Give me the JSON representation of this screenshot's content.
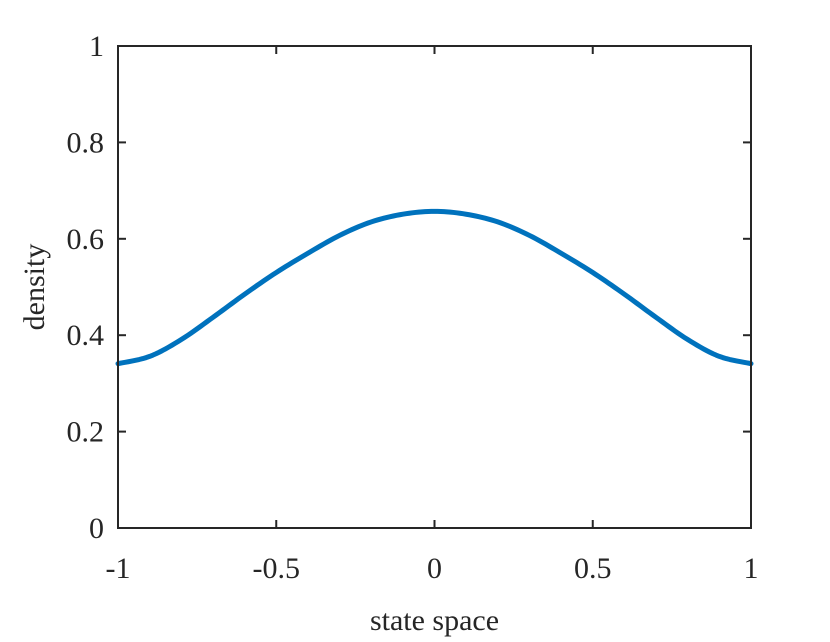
{
  "chart_data": {
    "type": "line",
    "title": "",
    "xlabel": "state space",
    "ylabel": "density",
    "xlim": [
      -1,
      1
    ],
    "ylim": [
      0,
      1
    ],
    "x_ticks": [
      -1,
      -0.5,
      0,
      0.5,
      1
    ],
    "x_tick_labels": [
      "-1",
      "-0.5",
      "0",
      "0.5",
      "1"
    ],
    "y_ticks": [
      0,
      0.2,
      0.4,
      0.6,
      0.8,
      1
    ],
    "y_tick_labels": [
      "0",
      "0.2",
      "0.4",
      "0.6",
      "0.8",
      "1"
    ],
    "grid": false,
    "legend": null,
    "series": [
      {
        "color": "#0072BD",
        "x": [
          -1,
          -0.9,
          -0.8,
          -0.7,
          -0.6,
          -0.5,
          -0.4,
          -0.3,
          -0.2,
          -0.1,
          0,
          0.1,
          0.2,
          0.3,
          0.4,
          0.5,
          0.6,
          0.7,
          0.8,
          0.9,
          1
        ],
        "y": [
          0.341,
          0.356,
          0.391,
          0.437,
          0.485,
          0.53,
          0.57,
          0.607,
          0.635,
          0.651,
          0.657,
          0.651,
          0.635,
          0.607,
          0.57,
          0.53,
          0.485,
          0.437,
          0.391,
          0.356,
          0.341
        ]
      }
    ]
  }
}
